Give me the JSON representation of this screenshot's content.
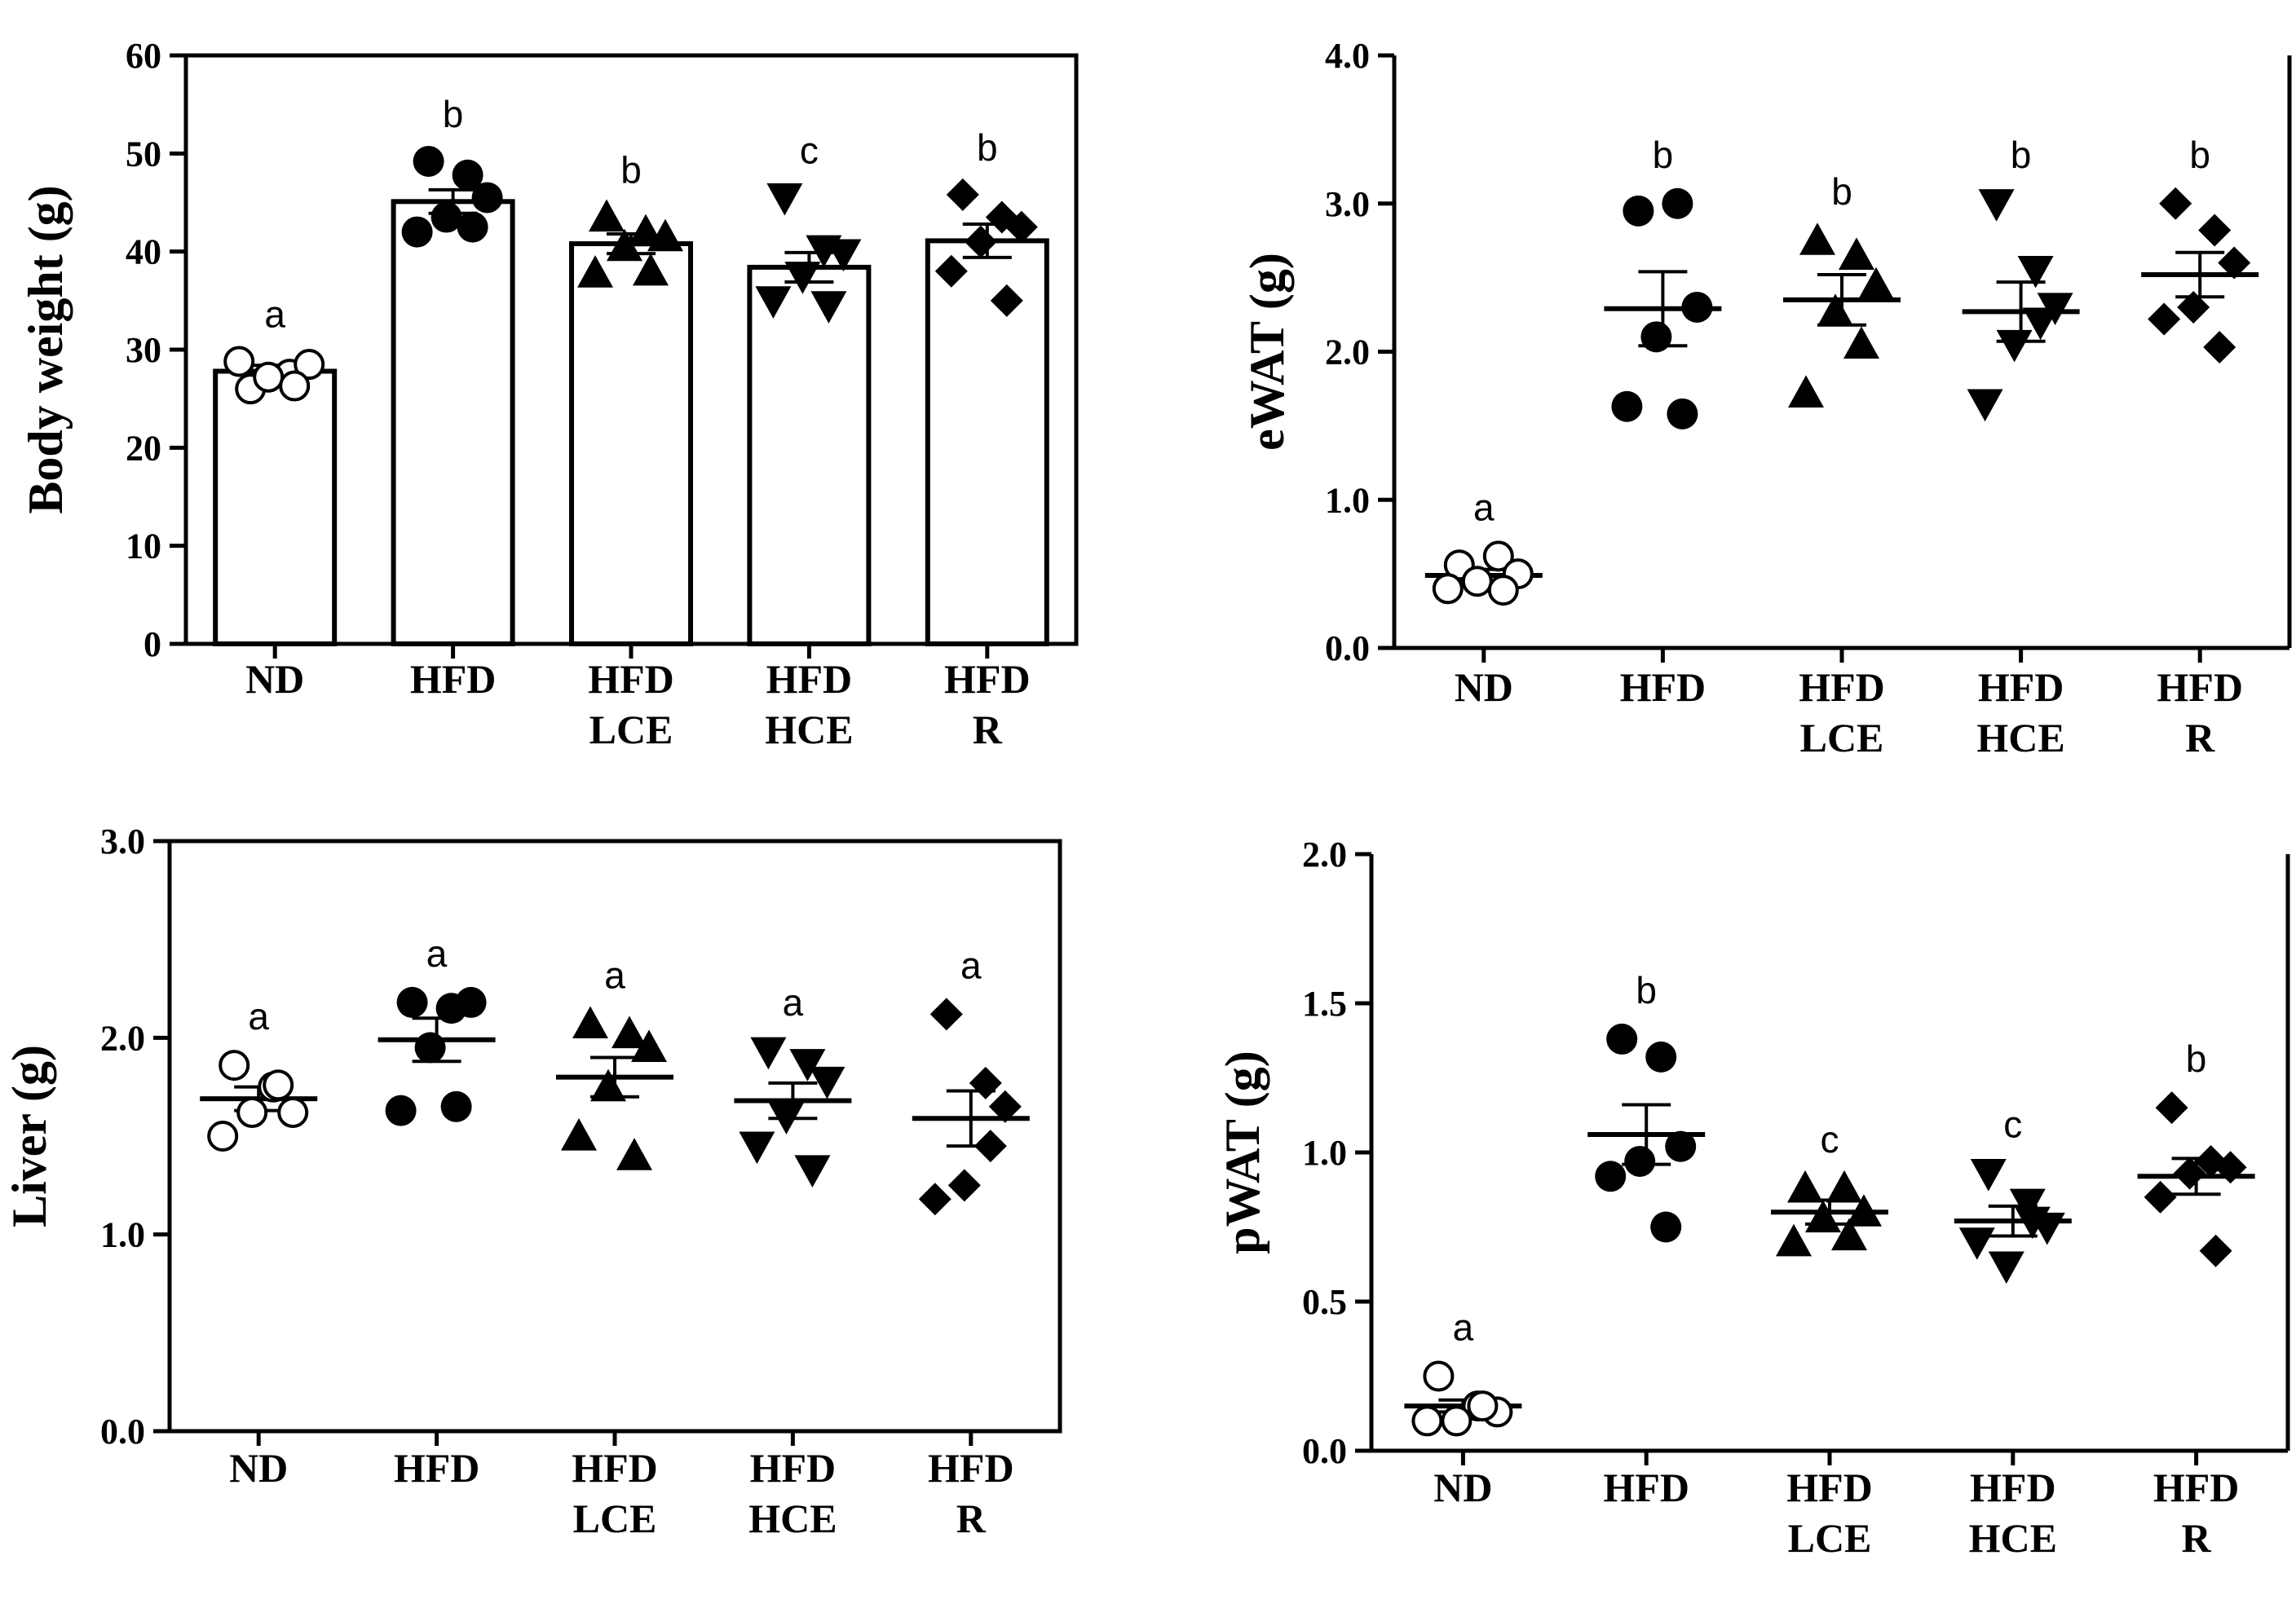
{
  "chart_data": [
    {
      "id": "body-weight",
      "type": "bar",
      "categories": [
        [
          "ND"
        ],
        [
          "HFD"
        ],
        [
          "HFD",
          "LCE"
        ],
        [
          "HFD",
          "HCE"
        ],
        [
          "HFD",
          "R"
        ]
      ],
      "ylabel": "Body weight (g)",
      "ylim": [
        0,
        60
      ],
      "yticks": [
        "0",
        "10",
        "20",
        "30",
        "40",
        "50",
        "60"
      ],
      "means": [
        27.8,
        45.1,
        40.8,
        38.4,
        41.1
      ],
      "sem": [
        0.6,
        1.2,
        1.0,
        1.5,
        1.7
      ],
      "points": [
        [
          26,
          27.5,
          28.5,
          27.2,
          28.8,
          26.3
        ],
        [
          49.2,
          47.8,
          45.5,
          43.5,
          42,
          42.5
        ],
        [
          43.5,
          42,
          41.5,
          40.5,
          37.8,
          38
        ],
        [
          45.5,
          40.2,
          39.8,
          37.5,
          35,
          34.5
        ],
        [
          45.8,
          43.5,
          42.5,
          41,
          38,
          35
        ]
      ],
      "sig_letters": [
        "a",
        "b",
        "b",
        "c",
        "b"
      ],
      "markers": [
        "open-circle",
        "filled-circle",
        "filled-triangle-up",
        "filled-triangle-down",
        "filled-diamond"
      ]
    },
    {
      "id": "ewat",
      "type": "scatter",
      "categories": [
        [
          "ND"
        ],
        [
          "HFD"
        ],
        [
          "HFD",
          "LCE"
        ],
        [
          "HFD",
          "HCE"
        ],
        [
          "HFD",
          "R"
        ]
      ],
      "ylabel": "eWAT (g)",
      "ylim": [
        0,
        4
      ],
      "yticks": [
        "0.0",
        "1.0",
        "2.0",
        "3.0",
        "4.0"
      ],
      "means": [
        0.49,
        2.29,
        2.35,
        2.27,
        2.52
      ],
      "sem": [
        0.04,
        0.25,
        0.17,
        0.2,
        0.15
      ],
      "points": [
        [
          0.56,
          0.62,
          0.5,
          0.45,
          0.4,
          0.39
        ],
        [
          2.95,
          3.0,
          2.3,
          2.1,
          1.63,
          1.58
        ],
        [
          2.75,
          2.65,
          2.45,
          2.27,
          1.72,
          2.05
        ],
        [
          3.0,
          2.55,
          2.3,
          2.05,
          1.65,
          2.2
        ],
        [
          3.0,
          2.82,
          2.6,
          2.3,
          2.22,
          2.03
        ]
      ],
      "sig_letters": [
        "a",
        "b",
        "b",
        "b",
        "b"
      ],
      "markers": [
        "open-circle",
        "filled-circle",
        "filled-triangle-up",
        "filled-triangle-down",
        "filled-diamond"
      ]
    },
    {
      "id": "liver",
      "type": "scatter",
      "categories": [
        [
          "ND"
        ],
        [
          "HFD"
        ],
        [
          "HFD",
          "LCE"
        ],
        [
          "HFD",
          "HCE"
        ],
        [
          "HFD",
          "R"
        ]
      ],
      "ylabel": "Liver (g)",
      "ylim": [
        0,
        3
      ],
      "yticks": [
        "0.0",
        "1.0",
        "2.0",
        "3.0"
      ],
      "means": [
        1.69,
        1.99,
        1.8,
        1.68,
        1.59
      ],
      "sem": [
        0.06,
        0.11,
        0.1,
        0.09,
        0.14
      ],
      "points": [
        [
          1.86,
          1.75,
          1.62,
          1.62,
          1.5,
          1.76
        ],
        [
          2.18,
          2.15,
          2.18,
          1.95,
          1.63,
          1.65
        ],
        [
          2.07,
          2.02,
          1.95,
          1.75,
          1.5,
          1.4
        ],
        [
          1.93,
          1.87,
          1.78,
          1.6,
          1.45,
          1.33
        ],
        [
          2.12,
          1.77,
          1.65,
          1.25,
          1.18,
          1.45
        ]
      ],
      "sig_letters": [
        "a",
        "a",
        "a",
        "a",
        "a"
      ],
      "markers": [
        "open-circle",
        "filled-circle",
        "filled-triangle-up",
        "filled-triangle-down",
        "filled-diamond"
      ]
    },
    {
      "id": "pwat",
      "type": "scatter",
      "categories": [
        [
          "ND"
        ],
        [
          "HFD"
        ],
        [
          "HFD",
          "LCE"
        ],
        [
          "HFD",
          "HCE"
        ],
        [
          "HFD",
          "R"
        ]
      ],
      "ylabel": "pWAT (g)",
      "ylim": [
        0,
        2
      ],
      "yticks": [
        "0.0",
        "0.5",
        "1.0",
        "1.5",
        "2.0"
      ],
      "means": [
        0.15,
        1.06,
        0.8,
        0.77,
        0.92
      ],
      "sem": [
        0.02,
        0.1,
        0.04,
        0.05,
        0.06
      ],
      "points": [
        [
          0.25,
          0.15,
          0.13,
          0.1,
          0.1,
          0.15
        ],
        [
          1.38,
          1.32,
          1.02,
          0.97,
          0.92,
          0.75
        ],
        [
          0.88,
          0.88,
          0.8,
          0.78,
          0.7,
          0.72
        ],
        [
          0.93,
          0.83,
          0.75,
          0.62,
          0.7,
          0.77
        ],
        [
          1.15,
          0.97,
          0.95,
          0.93,
          0.85,
          0.67
        ]
      ],
      "sig_letters": [
        "a",
        "b",
        "c",
        "c",
        "b"
      ],
      "markers": [
        "open-circle",
        "filled-circle",
        "filled-triangle-up",
        "filled-triangle-down",
        "filled-diamond"
      ]
    }
  ]
}
